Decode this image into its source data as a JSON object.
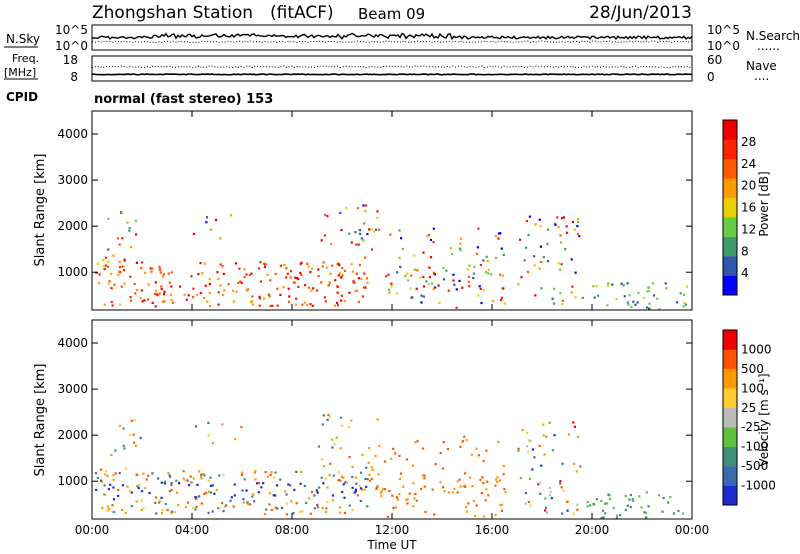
{
  "header": {
    "station": "Zhongshan Station",
    "mode": "(fitACF)",
    "beam": "Beam 09",
    "date": "28/Jun/2013",
    "cpid_label": "CPID",
    "cpid_text": "normal (fast stereo) 153"
  },
  "nsky": {
    "left_label": "N.Sky",
    "left_ticks": [
      "10^5",
      "10^0"
    ],
    "right_ticks": [
      "10^5",
      "10^0"
    ],
    "right_label": "N.Search",
    "right_marker": "......"
  },
  "freq": {
    "left_label_1": "Freq.",
    "left_label_2": "[MHz]",
    "left_ticks": [
      "18",
      "8"
    ],
    "right_ticks": [
      "60",
      "0"
    ],
    "right_label": "Nave",
    "right_marker": "...."
  },
  "chart_data": [
    {
      "type": "heatmap",
      "name": "power",
      "ylabel": "Slant Range [km]",
      "xlabel": "",
      "ylim": [
        180,
        4500
      ],
      "y_ticks": [
        "1000",
        "2000",
        "3000",
        "4000"
      ],
      "colorbar_label": "Power [dB]",
      "colorbar_ticks": [
        "28",
        "24",
        "20",
        "16",
        "12",
        "8",
        "4"
      ],
      "colors": [
        "#0000ff",
        "#3155a8",
        "#3f9a6a",
        "#66cc44",
        "#e8d000",
        "#ff9a00",
        "#ff5a00",
        "#ff2200",
        "#ee0000"
      ]
    },
    {
      "type": "heatmap",
      "name": "velocity",
      "ylabel": "Slant Range [km]",
      "xlabel": "Time UT",
      "ylim": [
        180,
        4500
      ],
      "y_ticks": [
        "1000",
        "2000",
        "3000",
        "4000"
      ],
      "x_ticks": [
        "00:00",
        "04:00",
        "08:00",
        "12:00",
        "16:00",
        "20:00",
        "00:00"
      ],
      "colorbar_label": "Velocity [m s⁻¹]",
      "colorbar_ticks": [
        "1000",
        "500",
        "100",
        "25",
        "-25",
        "-100",
        "-500",
        "-1000"
      ],
      "colors": [
        "#1a2ad0",
        "#3c6ab0",
        "#3e8e7a",
        "#60c040",
        "#bbbbbb",
        "#ffcc33",
        "#ff9900",
        "#ff5500",
        "#ee0000"
      ]
    }
  ]
}
